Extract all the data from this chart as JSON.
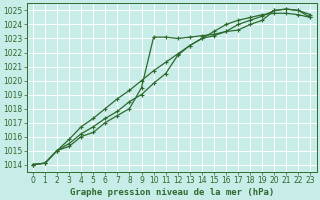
{
  "title": "Graphe pression niveau de la mer (hPa)",
  "bg_color": "#c8ece8",
  "grid_color": "#ffffff",
  "line_color": "#2d6a2d",
  "ylim": [
    1013.5,
    1025.5
  ],
  "xlim": [
    -0.5,
    23.5
  ],
  "yticks": [
    1014,
    1015,
    1016,
    1017,
    1018,
    1019,
    1020,
    1021,
    1022,
    1023,
    1024,
    1025
  ],
  "xticks": [
    0,
    1,
    2,
    3,
    4,
    5,
    6,
    7,
    8,
    9,
    10,
    11,
    12,
    13,
    14,
    15,
    16,
    17,
    18,
    19,
    20,
    21,
    22,
    23
  ],
  "line1_x": [
    0,
    1,
    2,
    3,
    4,
    5,
    6,
    7,
    8,
    9,
    10,
    11,
    12,
    13,
    14,
    15,
    16,
    17,
    18,
    19,
    20,
    21,
    22,
    23
  ],
  "line1_y": [
    1014.0,
    1014.1,
    1015.0,
    1015.3,
    1016.0,
    1016.3,
    1017.0,
    1017.5,
    1018.0,
    1019.5,
    1023.1,
    1023.1,
    1023.0,
    1023.1,
    1023.2,
    1023.3,
    1023.5,
    1023.6,
    1024.0,
    1024.3,
    1025.0,
    1025.1,
    1025.0,
    1024.5
  ],
  "line2_x": [
    0,
    1,
    2,
    3,
    4,
    5,
    6,
    7,
    8,
    9,
    10,
    11,
    12,
    13,
    14,
    15,
    16,
    17,
    18,
    19,
    20,
    21,
    22,
    23
  ],
  "line2_y": [
    1014.0,
    1014.1,
    1015.0,
    1015.5,
    1016.2,
    1016.7,
    1017.3,
    1017.8,
    1018.5,
    1019.0,
    1019.8,
    1020.5,
    1021.8,
    1022.5,
    1023.0,
    1023.2,
    1023.5,
    1024.0,
    1024.3,
    1024.6,
    1025.0,
    1025.1,
    1025.0,
    1024.7
  ],
  "line3_x": [
    0,
    1,
    2,
    3,
    4,
    5,
    6,
    7,
    8,
    9,
    10,
    11,
    12,
    13,
    14,
    15,
    16,
    17,
    18,
    19,
    20,
    21,
    22,
    23
  ],
  "line3_y": [
    1014.0,
    1014.1,
    1015.0,
    1015.8,
    1016.7,
    1017.3,
    1018.0,
    1018.7,
    1019.3,
    1020.0,
    1020.7,
    1021.3,
    1021.9,
    1022.5,
    1023.0,
    1023.5,
    1024.0,
    1024.3,
    1024.5,
    1024.7,
    1024.8,
    1024.8,
    1024.7,
    1024.5
  ],
  "tick_fontsize": 5.5,
  "label_fontsize": 6.5
}
